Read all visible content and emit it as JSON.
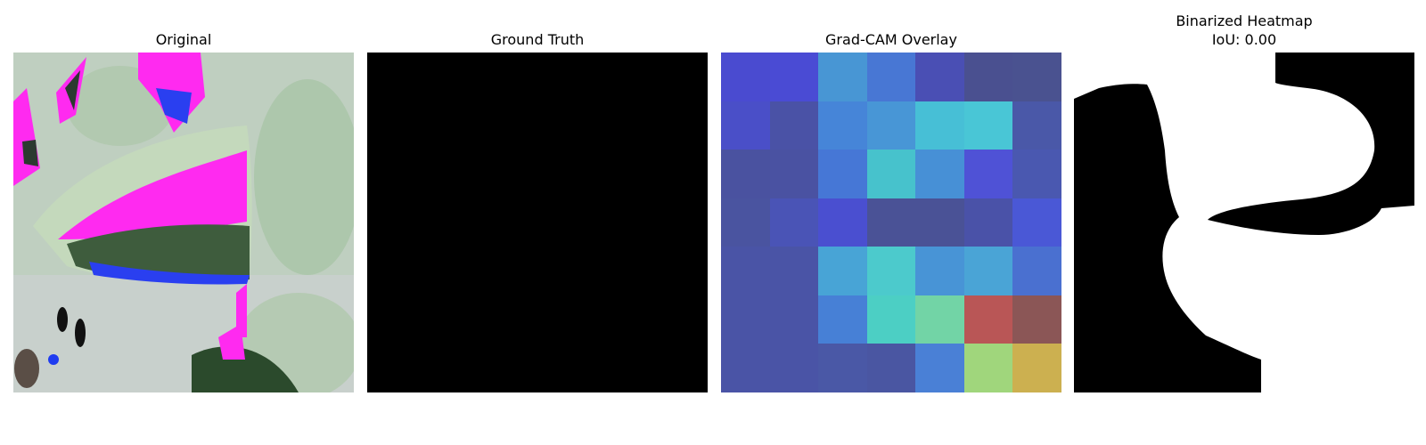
{
  "panels": [
    {
      "title": "Original"
    },
    {
      "title": "Ground Truth"
    },
    {
      "title": "Grad-CAM Overlay"
    },
    {
      "title_line1": "Binarized Heatmap",
      "title_line2": "IoU: 0.00"
    }
  ],
  "gradcam_grid": {
    "rows": 7,
    "cols": 7,
    "colors": [
      [
        "#4a4bd0",
        "#4a4bd4",
        "#4896d4",
        "#4877d4",
        "#4a4fb4",
        "#4a5090",
        "#4a5290"
      ],
      [
        "#4a4fc8",
        "#4a52a6",
        "#4685d8",
        "#4896d6",
        "#47bfd6",
        "#49c6d6",
        "#4a58a8"
      ],
      [
        "#4a52a0",
        "#4a52a2",
        "#4677d6",
        "#47c2cc",
        "#4790d6",
        "#4f52d6",
        "#4a58b0"
      ],
      [
        "#4a54a0",
        "#4a54b6",
        "#4a4fd0",
        "#4a5296",
        "#4a5296",
        "#4a52a8",
        "#4a58d6"
      ],
      [
        "#4a54a6",
        "#4a54a6",
        "#48a4d6",
        "#4ccacc",
        "#4894d6",
        "#4aa4d6",
        "#4a70d0"
      ],
      [
        "#4a54a6",
        "#4a54a6",
        "#4780d6",
        "#4ccfc4",
        "#72d4a6",
        "#b95656",
        "#8b5656"
      ],
      [
        "#4a54a6",
        "#4a54a6",
        "#4a58a6",
        "#4a56a2",
        "#4a80d6",
        "#a0d67c",
        "#ccb050"
      ]
    ]
  },
  "colors": {
    "background": "#ffffff",
    "ground_truth_fill": "#000000",
    "mask_on": "#ffffff",
    "mask_off": "#000000",
    "leaf_pale": "#b9cfb4",
    "magenta": "#ff1ff0",
    "blue": "#1f3cf0",
    "dark_leaf": "#3c5a3c"
  }
}
